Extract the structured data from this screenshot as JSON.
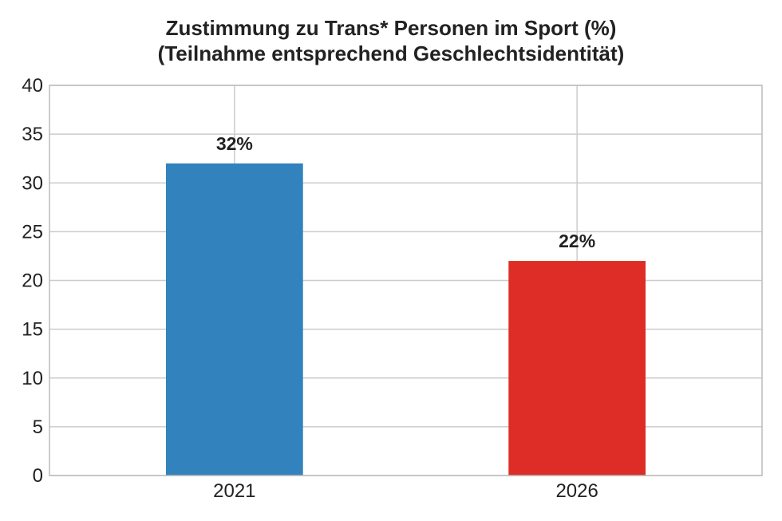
{
  "chart_data": {
    "type": "bar",
    "title": "Zustimmung zu Trans* Personen im Sport (%)",
    "subtitle": "(Teilnahme entsprechend Geschlechtsidentität)",
    "categories": [
      "2021",
      "2026"
    ],
    "values": [
      32,
      22
    ],
    "data_labels": [
      "32%",
      "22%"
    ],
    "colors": [
      "#3182bd",
      "#de2d26"
    ],
    "xlabel": "",
    "ylabel": "",
    "ylim": [
      0,
      40
    ],
    "yticks": [
      0,
      5,
      10,
      15,
      20,
      25,
      30,
      35,
      40
    ],
    "grid": true,
    "legend": "none"
  }
}
